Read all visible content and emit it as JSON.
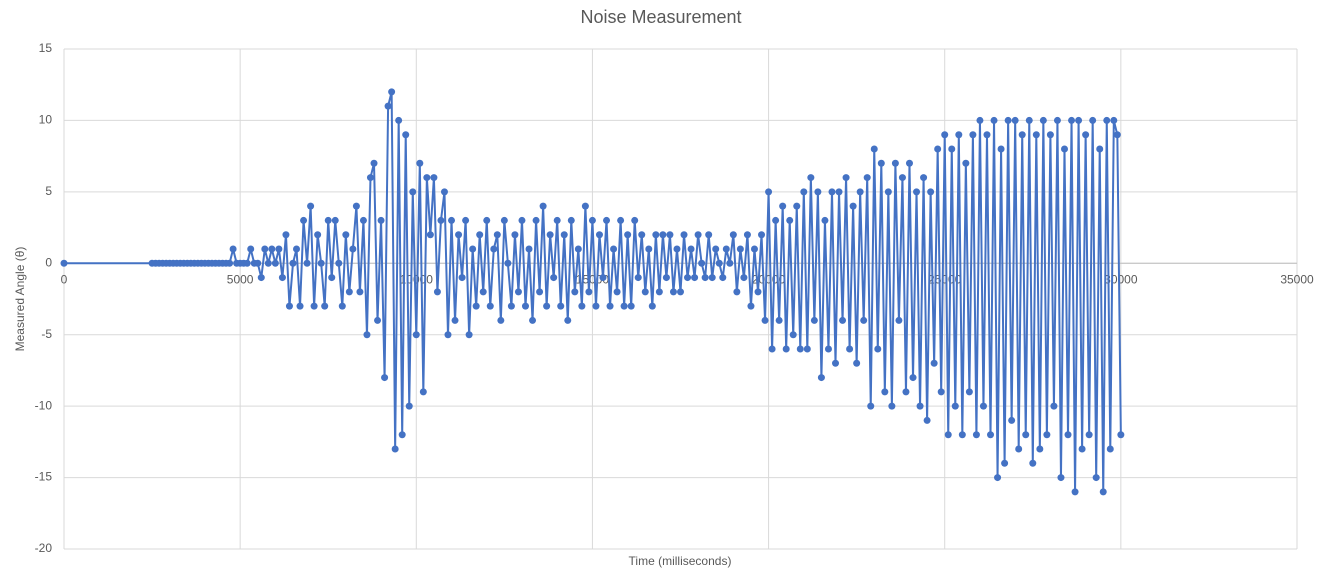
{
  "chart_data": {
    "type": "line",
    "title": "Noise Measurement",
    "x_label": "Time (milliseconds)",
    "y_label": "Measured Angle (θ)",
    "x": [
      0,
      2500,
      2600,
      2700,
      2800,
      2900,
      3000,
      3100,
      3200,
      3300,
      3400,
      3500,
      3600,
      3700,
      3800,
      3900,
      4000,
      4100,
      4200,
      4300,
      4400,
      4500,
      4600,
      4700,
      4800,
      4900,
      5000,
      5100,
      5200,
      5300,
      5400,
      5500,
      5600,
      5700,
      5800,
      5900,
      6000,
      6100,
      6200,
      6300,
      6400,
      6500,
      6600,
      6700,
      6800,
      6900,
      7000,
      7100,
      7200,
      7300,
      7400,
      7500,
      7600,
      7700,
      7800,
      7900,
      8000,
      8100,
      8200,
      8300,
      8400,
      8500,
      8600,
      8700,
      8800,
      8900,
      9000,
      9100,
      9200,
      9300,
      9400,
      9500,
      9600,
      9700,
      9800,
      9900,
      10000,
      10100,
      10200,
      10300,
      10400,
      10500,
      10600,
      10700,
      10800,
      10900,
      11000,
      11100,
      11200,
      11300,
      11400,
      11500,
      11600,
      11700,
      11800,
      11900,
      12000,
      12100,
      12200,
      12300,
      12400,
      12500,
      12600,
      12700,
      12800,
      12900,
      13000,
      13100,
      13200,
      13300,
      13400,
      13500,
      13600,
      13700,
      13800,
      13900,
      14000,
      14100,
      14200,
      14300,
      14400,
      14500,
      14600,
      14700,
      14800,
      14900,
      15000,
      15100,
      15200,
      15300,
      15400,
      15500,
      15600,
      15700,
      15800,
      15900,
      16000,
      16100,
      16200,
      16300,
      16400,
      16500,
      16600,
      16700,
      16800,
      16900,
      17000,
      17100,
      17200,
      17300,
      17400,
      17500,
      17600,
      17700,
      17800,
      17900,
      18000,
      18100,
      18200,
      18300,
      18400,
      18500,
      18600,
      18700,
      18800,
      18900,
      19000,
      19100,
      19200,
      19300,
      19400,
      19500,
      19600,
      19700,
      19800,
      19900,
      20000,
      20100,
      20200,
      20300,
      20400,
      20500,
      20600,
      20700,
      20800,
      20900,
      21000,
      21100,
      21200,
      21300,
      21400,
      21500,
      21600,
      21700,
      21800,
      21900,
      22000,
      22100,
      22200,
      22300,
      22400,
      22500,
      22600,
      22700,
      22800,
      22900,
      23000,
      23100,
      23200,
      23300,
      23400,
      23500,
      23600,
      23700,
      23800,
      23900,
      24000,
      24100,
      24200,
      24300,
      24400,
      24500,
      24600,
      24700,
      24800,
      24900,
      25000,
      25100,
      25200,
      25300,
      25400,
      25500,
      25600,
      25700,
      25800,
      25900,
      26000,
      26100,
      26200,
      26300,
      26400,
      26500,
      26600,
      26700,
      26800,
      26900,
      27000,
      27100,
      27200,
      27300,
      27400,
      27500,
      27600,
      27700,
      27800,
      27900,
      28000,
      28100,
      28200,
      28300,
      28400,
      28500,
      28600,
      28700,
      28800,
      28900,
      29000,
      29100,
      29200,
      29300,
      29400,
      29500,
      29600,
      29700,
      29800,
      29900,
      30000
    ],
    "series": [
      {
        "name": "Measured Angle",
        "color": "#4472c4",
        "values": [
          0,
          0,
          0,
          0,
          0,
          0,
          0,
          0,
          0,
          0,
          0,
          0,
          0,
          0,
          0,
          0,
          0,
          0,
          0,
          0,
          0,
          0,
          0,
          0,
          1,
          0,
          0,
          0,
          0,
          1,
          0,
          0,
          -1,
          1,
          0,
          1,
          0,
          1,
          -1,
          2,
          -3,
          0,
          1,
          -3,
          3,
          0,
          4,
          -3,
          2,
          0,
          -3,
          3,
          -1,
          3,
          0,
          -3,
          2,
          -2,
          1,
          4,
          -2,
          3,
          -5,
          6,
          7,
          -4,
          3,
          -8,
          11,
          12,
          -13,
          10,
          -12,
          9,
          -10,
          5,
          -5,
          7,
          -9,
          6,
          2,
          6,
          -2,
          3,
          5,
          -5,
          3,
          -4,
          2,
          -1,
          3,
          -5,
          1,
          -3,
          2,
          -2,
          3,
          -3,
          1,
          2,
          -4,
          3,
          0,
          -3,
          2,
          -2,
          3,
          -3,
          1,
          -4,
          3,
          -2,
          4,
          -3,
          2,
          -1,
          3,
          -3,
          2,
          -4,
          3,
          -2,
          1,
          -3,
          4,
          -2,
          3,
          -3,
          2,
          -1,
          3,
          -3,
          1,
          -2,
          3,
          -3,
          2,
          -3,
          3,
          -1,
          2,
          -2,
          1,
          -3,
          2,
          -2,
          2,
          -1,
          2,
          -2,
          1,
          -2,
          2,
          -1,
          1,
          -1,
          2,
          0,
          -1,
          2,
          -1,
          1,
          0,
          -1,
          1,
          0,
          2,
          -2,
          1,
          -1,
          2,
          -3,
          1,
          -2,
          2,
          -4,
          5,
          -6,
          3,
          -4,
          4,
          -6,
          3,
          -5,
          4,
          -6,
          5,
          -6,
          6,
          -4,
          5,
          -8,
          3,
          -6,
          5,
          -7,
          5,
          -4,
          6,
          -6,
          4,
          -7,
          5,
          -4,
          6,
          -10,
          8,
          -6,
          7,
          -9,
          5,
          -10,
          7,
          -4,
          6,
          -9,
          7,
          -8,
          5,
          -10,
          6,
          -11,
          5,
          -7,
          8,
          -9,
          9,
          -12,
          8,
          -10,
          9,
          -12,
          7,
          -9,
          9,
          -12,
          10,
          -10,
          9,
          -12,
          10,
          -15,
          8,
          -14,
          10,
          -11,
          10,
          -13,
          9,
          -12,
          10,
          -14,
          9,
          -13,
          10,
          -12,
          9,
          -10,
          10,
          -15,
          8,
          -12,
          10,
          -16,
          10,
          -13,
          9,
          -12,
          10,
          -15,
          8,
          -16,
          10,
          -13,
          10,
          9,
          -12
        ]
      }
    ],
    "xlim": [
      0,
      35000
    ],
    "xticks": [
      0,
      5000,
      10000,
      15000,
      20000,
      25000,
      30000,
      35000
    ],
    "ylim": [
      -20,
      15
    ],
    "yticks": [
      -20,
      -15,
      -10,
      -5,
      0,
      5,
      10,
      15
    ],
    "grid": true
  }
}
